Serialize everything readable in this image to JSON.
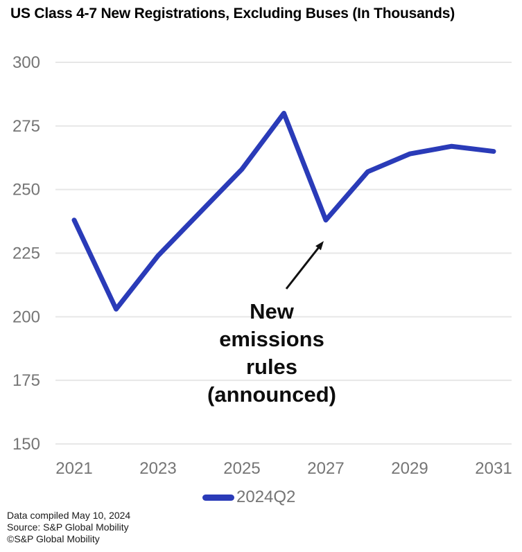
{
  "title": "US Class 4-7 New Registrations, Excluding Buses (In Thousands)",
  "colors": {
    "line": "#2a3bb8",
    "axis_text": "#757575",
    "gridline": "#e7e7e7",
    "annotation_text": "#0d0d0d",
    "arrow": "#111111",
    "footer_text": "#1a1a1a"
  },
  "chart_data": {
    "type": "line",
    "title": "US Class 4-7 New Registrations, Excluding Buses (In Thousands)",
    "x": [
      2021,
      2022,
      2023,
      2024,
      2025,
      2026,
      2027,
      2028,
      2029,
      2030,
      2031
    ],
    "series": [
      {
        "name": "2024Q2",
        "values": [
          238,
          203,
          224,
          241,
          258,
          280,
          238,
          257,
          264,
          267,
          265
        ]
      }
    ],
    "xlabel": "",
    "ylabel": "",
    "ylim": [
      150,
      300
    ],
    "yticks": [
      300,
      275,
      250,
      225,
      200,
      175,
      150
    ],
    "xticks": [
      2021,
      2023,
      2025,
      2027,
      2029,
      2031
    ],
    "grid": "horizontal",
    "legend_position": "bottom",
    "annotation": {
      "lines": [
        "New",
        "emissions",
        "rules",
        "(announced)"
      ],
      "arrow_points_to": {
        "x": 2027,
        "y": 238
      }
    }
  },
  "legend": {
    "label": "2024Q2"
  },
  "footer": {
    "lines": [
      "Data compiled May 10, 2024",
      "Source: S&P Global Mobility",
      "©S&P Global Mobility"
    ]
  }
}
